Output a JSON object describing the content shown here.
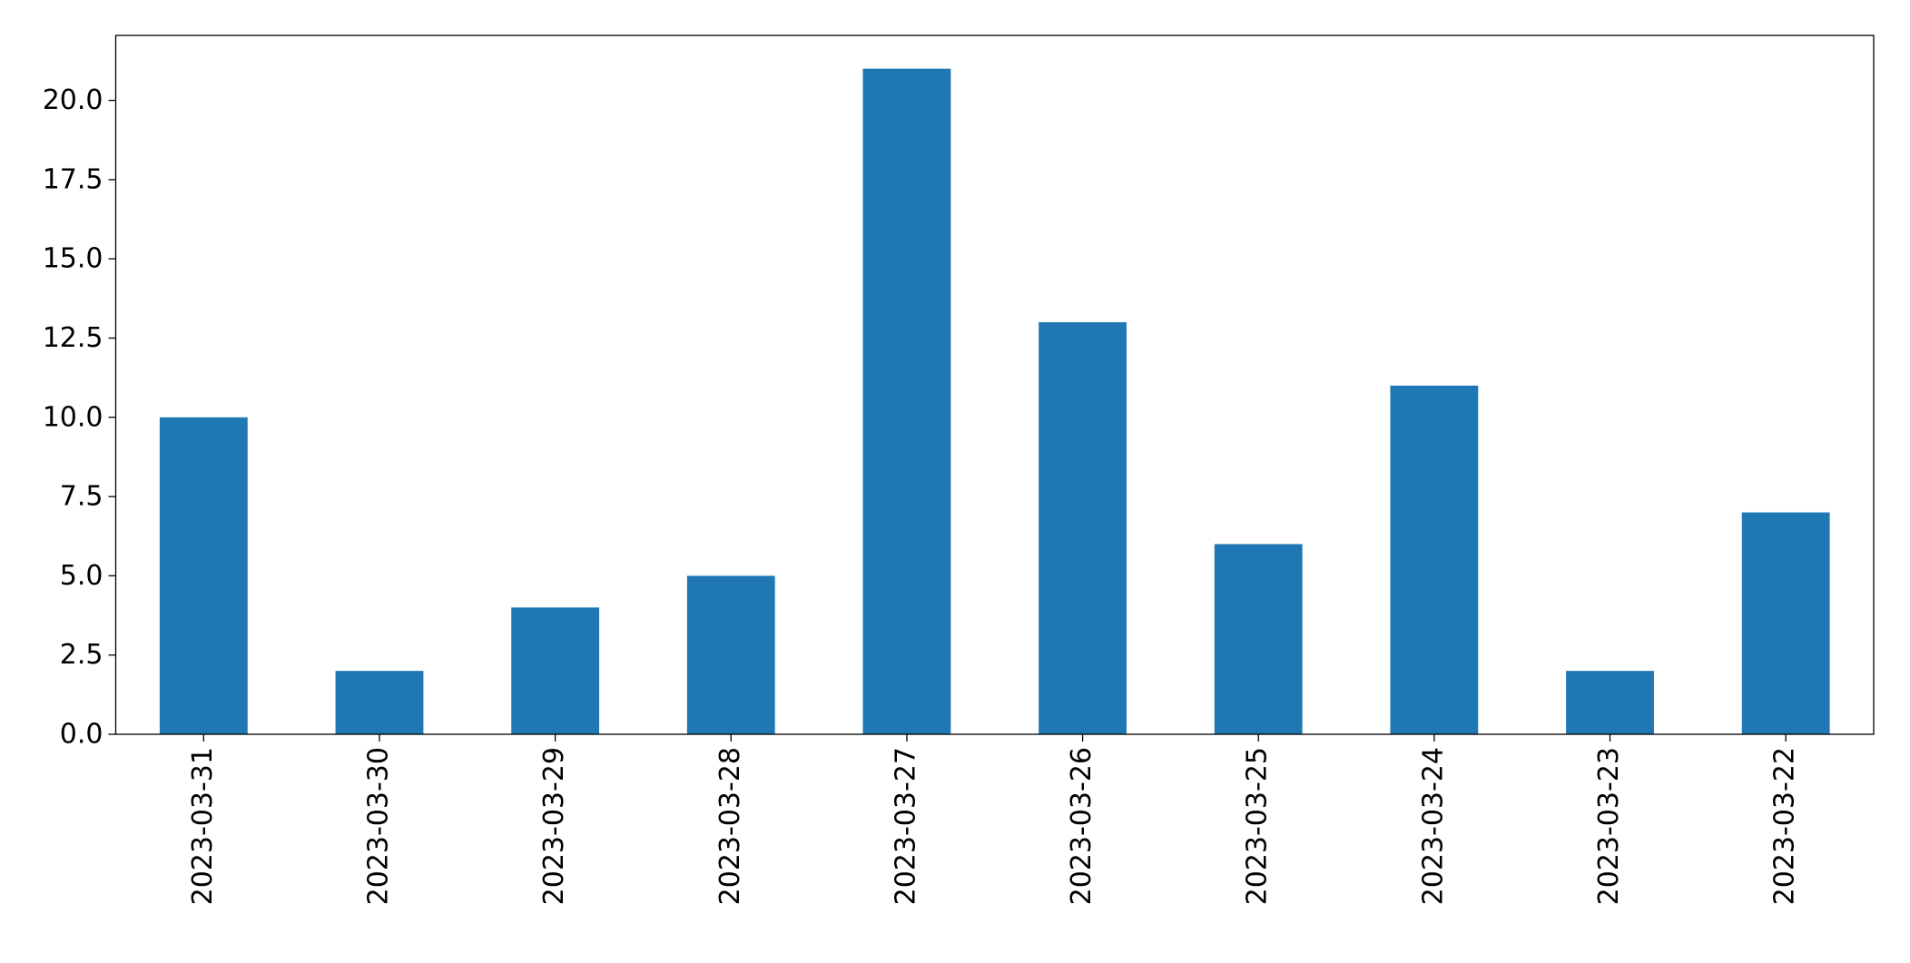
{
  "chart_data": {
    "type": "bar",
    "categories": [
      "2023-03-31",
      "2023-03-30",
      "2023-03-29",
      "2023-03-28",
      "2023-03-27",
      "2023-03-26",
      "2023-03-25",
      "2023-03-24",
      "2023-03-23",
      "2023-03-22"
    ],
    "values": [
      10,
      2,
      4,
      5,
      21,
      13,
      6,
      11,
      2,
      7
    ],
    "color": "#1f77b4",
    "ylim": [
      0,
      22.05
    ],
    "yticks": [
      {
        "value": 0,
        "label": "0.0"
      },
      {
        "value": 2.5,
        "label": "2.5"
      },
      {
        "value": 5,
        "label": "5.0"
      },
      {
        "value": 7.5,
        "label": "7.5"
      },
      {
        "value": 10,
        "label": "10.0"
      },
      {
        "value": 12.5,
        "label": "12.5"
      },
      {
        "value": 15,
        "label": "15.0"
      },
      {
        "value": 17.5,
        "label": "17.5"
      },
      {
        "value": 20,
        "label": "20.0"
      }
    ],
    "grid": false
  }
}
